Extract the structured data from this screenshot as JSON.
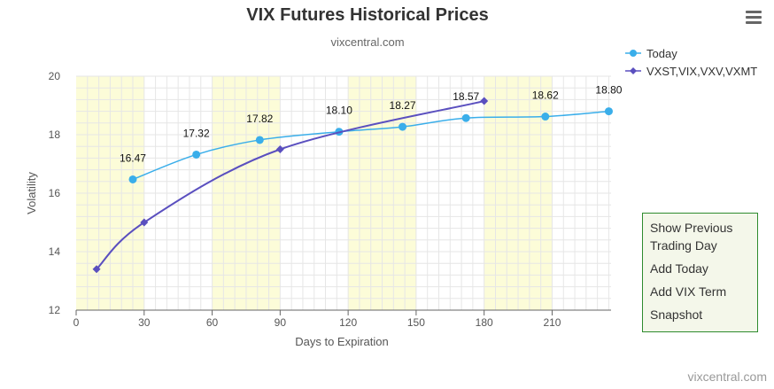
{
  "title": "VIX Futures Historical Prices",
  "subtitle": "vixcentral.com",
  "credit": "vixcentral.com",
  "menu_icon": "hamburger-menu-icon",
  "panel": {
    "items": [
      "Show Previous Trading Day",
      "Add Today",
      "Add VIX Term",
      "Snapshot"
    ]
  },
  "chart_data": {
    "type": "line",
    "xlabel": "Days to Expiration",
    "ylabel": "Volatility",
    "xlim": [
      0,
      236
    ],
    "ylim": [
      12,
      20
    ],
    "x_ticks": [
      0,
      30,
      60,
      90,
      120,
      150,
      180,
      210
    ],
    "y_ticks": [
      12,
      14,
      16,
      18,
      20
    ],
    "shaded_x_bands": [
      [
        0,
        30
      ],
      [
        60,
        90
      ],
      [
        120,
        150
      ],
      [
        180,
        210
      ]
    ],
    "band_color": "#fcfcd8",
    "grid": true,
    "legend_position": "top-right",
    "series": [
      {
        "name": "Today",
        "color": "#3aaeea",
        "marker": "circle",
        "x": [
          25,
          53,
          81,
          116,
          144,
          172,
          207,
          235
        ],
        "y": [
          16.47,
          17.32,
          17.82,
          18.1,
          18.27,
          18.57,
          18.62,
          18.8
        ],
        "labels": [
          "16.47",
          "17.32",
          "17.82",
          "18.10",
          "18.27",
          "18.57",
          "18.62",
          "18.80"
        ]
      },
      {
        "name": "VXST,VIX,VXV,VXMT",
        "color": "#5a4fbf",
        "marker": "diamond",
        "x": [
          9,
          30,
          90,
          180
        ],
        "y": [
          13.4,
          15.0,
          17.5,
          19.15
        ]
      }
    ]
  }
}
